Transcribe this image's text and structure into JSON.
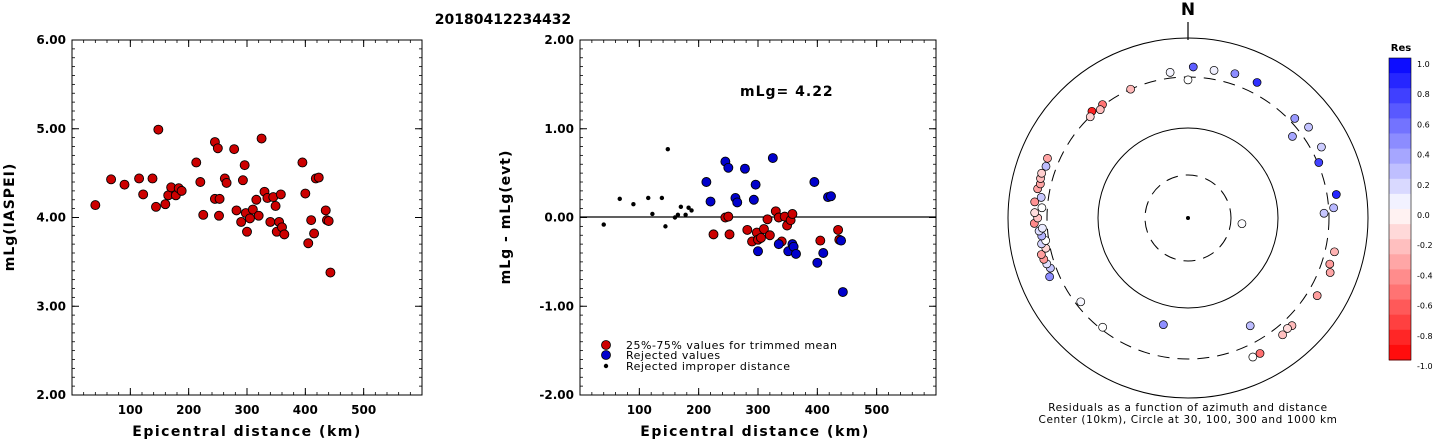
{
  "title": "20180412234432",
  "chart_data": [
    {
      "type": "scatter",
      "xlabel": "Epicentral distance (km)",
      "ylabel": "mLg(IASPEI)",
      "xlim": [
        0,
        600
      ],
      "ylim": [
        2.0,
        6.0
      ],
      "xticks": [
        "100",
        "200",
        "300",
        "400",
        "500"
      ],
      "yticks": [
        "2.00",
        "3.00",
        "4.00",
        "5.00",
        "6.00"
      ],
      "point_color": "#cc0000",
      "points": [
        [
          40,
          4.14
        ],
        [
          67,
          4.43
        ],
        [
          90,
          4.37
        ],
        [
          115,
          4.44
        ],
        [
          122,
          4.26
        ],
        [
          138,
          4.44
        ],
        [
          144,
          4.12
        ],
        [
          148,
          4.99
        ],
        [
          160,
          4.15
        ],
        [
          165,
          4.25
        ],
        [
          170,
          4.34
        ],
        [
          178,
          4.25
        ],
        [
          183,
          4.33
        ],
        [
          188,
          4.3
        ],
        [
          213,
          4.62
        ],
        [
          220,
          4.4
        ],
        [
          225,
          4.03
        ],
        [
          245,
          4.21
        ],
        [
          245,
          4.85
        ],
        [
          250,
          4.78
        ],
        [
          252,
          4.02
        ],
        [
          253,
          4.21
        ],
        [
          262,
          4.44
        ],
        [
          265,
          4.39
        ],
        [
          278,
          4.77
        ],
        [
          282,
          4.08
        ],
        [
          290,
          3.95
        ],
        [
          293,
          4.42
        ],
        [
          296,
          4.59
        ],
        [
          298,
          4.05
        ],
        [
          300,
          3.84
        ],
        [
          305,
          3.99
        ],
        [
          310,
          4.09
        ],
        [
          316,
          4.2
        ],
        [
          320,
          4.02
        ],
        [
          325,
          4.89
        ],
        [
          330,
          4.29
        ],
        [
          335,
          4.22
        ],
        [
          340,
          3.95
        ],
        [
          345,
          4.23
        ],
        [
          349,
          4.13
        ],
        [
          351,
          3.84
        ],
        [
          355,
          3.95
        ],
        [
          358,
          4.26
        ],
        [
          360,
          3.89
        ],
        [
          364,
          3.81
        ],
        [
          395,
          4.62
        ],
        [
          400,
          4.27
        ],
        [
          405,
          3.71
        ],
        [
          410,
          3.97
        ],
        [
          415,
          3.82
        ],
        [
          418,
          4.44
        ],
        [
          423,
          4.45
        ],
        [
          435,
          4.08
        ],
        [
          437,
          3.97
        ],
        [
          440,
          3.96
        ],
        [
          443,
          3.38
        ]
      ]
    },
    {
      "type": "scatter",
      "xlabel": "Epicentral distance (km)",
      "ylabel": "mLg - mLg(evt)",
      "xlim": [
        0,
        600
      ],
      "ylim": [
        -2.0,
        2.0
      ],
      "xticks": [
        "100",
        "200",
        "300",
        "400",
        "500"
      ],
      "yticks": [
        "-2.00",
        "-1.00",
        "0.00",
        "1.00",
        "2.00"
      ],
      "annotation": "mLg= 4.22",
      "zero_line": 0.0,
      "legend": {
        "position": "bottom-left",
        "entries": [
          {
            "label": "25%-75% values for trimmed mean",
            "color": "#cc0000"
          },
          {
            "label": "Rejected values",
            "color": "#0000cc"
          },
          {
            "label": "Rejected improper distance",
            "color": "#000000"
          }
        ]
      },
      "series": [
        {
          "color": "#cc0000",
          "marker": "large",
          "points": [
            [
              225,
              -0.19
            ],
            [
              245,
              0.0
            ],
            [
              250,
              0.01
            ],
            [
              252,
              -0.19
            ],
            [
              282,
              -0.14
            ],
            [
              290,
              -0.27
            ],
            [
              298,
              -0.17
            ],
            [
              300,
              -0.25
            ],
            [
              305,
              -0.23
            ],
            [
              310,
              -0.13
            ],
            [
              316,
              -0.02
            ],
            [
              320,
              -0.2
            ],
            [
              330,
              0.07
            ],
            [
              335,
              0.0
            ],
            [
              340,
              -0.27
            ],
            [
              345,
              0.01
            ],
            [
              349,
              -0.09
            ],
            [
              355,
              -0.03
            ],
            [
              358,
              0.04
            ],
            [
              405,
              -0.26
            ],
            [
              435,
              -0.14
            ],
            [
              437,
              -0.25
            ]
          ]
        },
        {
          "color": "#0000cc",
          "marker": "large",
          "points": [
            [
              213,
              0.4
            ],
            [
              220,
              0.18
            ],
            [
              245,
              0.63
            ],
            [
              250,
              0.56
            ],
            [
              262,
              0.22
            ],
            [
              265,
              0.17
            ],
            [
              278,
              0.55
            ],
            [
              293,
              0.2
            ],
            [
              296,
              0.37
            ],
            [
              300,
              -0.38
            ],
            [
              325,
              0.67
            ],
            [
              335,
              -0.3
            ],
            [
              351,
              -0.38
            ],
            [
              358,
              -0.3
            ],
            [
              360,
              -0.33
            ],
            [
              364,
              -0.41
            ],
            [
              395,
              0.4
            ],
            [
              400,
              -0.51
            ],
            [
              410,
              -0.4
            ],
            [
              418,
              0.23
            ],
            [
              423,
              0.24
            ],
            [
              440,
              -0.26
            ],
            [
              443,
              -0.84
            ]
          ]
        },
        {
          "color": "#000000",
          "marker": "small",
          "points": [
            [
              40,
              -0.08
            ],
            [
              67,
              0.21
            ],
            [
              90,
              0.15
            ],
            [
              115,
              0.22
            ],
            [
              122,
              0.04
            ],
            [
              138,
              0.22
            ],
            [
              144,
              -0.1
            ],
            [
              148,
              0.77
            ],
            [
              160,
              0.0
            ],
            [
              165,
              0.03
            ],
            [
              170,
              0.12
            ],
            [
              178,
              0.03
            ],
            [
              183,
              0.11
            ],
            [
              188,
              0.08
            ]
          ]
        }
      ]
    },
    {
      "type": "polar-scatter",
      "north_label": "N",
      "caption_line1": "Residuals as a function of azimuth and distance",
      "caption_line2": "Center (10km), Circle at 30, 100, 300 and 1000 km",
      "rings_km": [
        30,
        100,
        300,
        1000
      ],
      "colorbar": {
        "title": "Res",
        "range": [
          -1.0,
          1.0
        ],
        "labels": [
          "1.0",
          "0.8",
          "0.6",
          "0.4",
          "0.2",
          "0.0",
          "-0.2",
          "-0.4",
          "-0.6",
          "-0.8",
          "-1.0"
        ],
        "positive_color": "#0000ff",
        "negative_color": "#ff0000"
      },
      "points": [
        {
          "az": 353,
          "dist_km": 358,
          "res": 0.04
        },
        {
          "az": 2,
          "dist_km": 410,
          "res": 0.63
        },
        {
          "az": 10,
          "dist_km": 395,
          "res": 0.06
        },
        {
          "az": 18,
          "dist_km": 418,
          "res": 0.45
        },
        {
          "az": 27,
          "dist_km": 423,
          "res": 0.81
        },
        {
          "az": 0,
          "dist_km": 282,
          "res": 0.0
        },
        {
          "az": 336,
          "dist_km": 300,
          "res": -0.28
        },
        {
          "az": 323,
          "dist_km": 310,
          "res": -0.55
        },
        {
          "az": 318,
          "dist_km": 325,
          "res": -0.88
        },
        {
          "az": 316,
          "dist_km": 298,
          "res": -0.18
        },
        {
          "az": 321,
          "dist_km": 290,
          "res": -0.26
        },
        {
          "az": 53,
          "dist_km": 408,
          "res": 0.24
        },
        {
          "az": 47,
          "dist_km": 350,
          "res": 0.4
        },
        {
          "az": 62,
          "dist_km": 410,
          "res": 0.2
        },
        {
          "az": 52,
          "dist_km": 250,
          "res": 0.35
        },
        {
          "az": 67,
          "dist_km": 310,
          "res": 0.74
        },
        {
          "az": 81,
          "dist_km": 398,
          "res": 0.86
        },
        {
          "az": 86,
          "dist_km": 350,
          "res": 0.28
        },
        {
          "az": 88,
          "dist_km": 270,
          "res": 0.22
        },
        {
          "az": 96,
          "dist_km": 40,
          "res": 0.01
        },
        {
          "az": 103,
          "dist_km": 400,
          "res": -0.3
        },
        {
          "az": 108,
          "dist_km": 385,
          "res": -0.39
        },
        {
          "az": 111,
          "dist_km": 425,
          "res": -0.35
        },
        {
          "az": 121,
          "dist_km": 405,
          "res": -0.38
        },
        {
          "az": 136,
          "dist_km": 392,
          "res": -0.27
        },
        {
          "az": 141,
          "dist_km": 400,
          "res": -0.25
        },
        {
          "az": 138,
          "dist_km": 380,
          "res": -0.14
        },
        {
          "az": 152,
          "dist_km": 440,
          "res": -0.56
        },
        {
          "az": 155,
          "dist_km": 440,
          "res": 0.0
        },
        {
          "az": 150,
          "dist_km": 210,
          "res": 0.26
        },
        {
          "az": 193,
          "dist_km": 152,
          "res": 0.44
        },
        {
          "az": 218,
          "dist_km": 285,
          "res": 0.0
        },
        {
          "az": 232,
          "dist_km": 270,
          "res": 0.03
        },
        {
          "az": 247,
          "dist_km": 400,
          "res": 0.45
        },
        {
          "az": 250,
          "dist_km": 355,
          "res": 0.23
        },
        {
          "az": 252,
          "dist_km": 378,
          "res": 0.12
        },
        {
          "az": 254,
          "dist_km": 396,
          "res": -0.4
        },
        {
          "az": 256,
          "dist_km": 410,
          "res": -0.38
        },
        {
          "az": 258,
          "dist_km": 343,
          "res": -0.16
        },
        {
          "az": 260,
          "dist_km": 380,
          "res": 0.17
        },
        {
          "az": 261,
          "dist_km": 330,
          "res": 0.0
        },
        {
          "az": 263,
          "dist_km": 365,
          "res": 0.3
        },
        {
          "az": 265,
          "dist_km": 390,
          "res": 0.13
        },
        {
          "az": 266,
          "dist_km": 350,
          "res": 0.08
        },
        {
          "az": 268,
          "dist_km": 445,
          "res": -0.46
        },
        {
          "az": 270,
          "dist_km": 400,
          "res": -0.23
        },
        {
          "az": 272,
          "dist_km": 440,
          "res": -0.13
        },
        {
          "az": 274,
          "dist_km": 355,
          "res": 0.0
        },
        {
          "az": 276,
          "dist_km": 450,
          "res": -0.42
        },
        {
          "az": 278,
          "dist_km": 375,
          "res": 0.22
        },
        {
          "az": 281,
          "dist_km": 437,
          "res": -0.37
        },
        {
          "az": 283,
          "dist_km": 415,
          "res": -0.36
        },
        {
          "az": 285,
          "dist_km": 430,
          "res": -0.27
        },
        {
          "az": 287,
          "dist_km": 435,
          "res": -0.19
        },
        {
          "az": 290,
          "dist_km": 410,
          "res": 0.26
        },
        {
          "az": 293,
          "dist_km": 430,
          "res": -0.36
        }
      ]
    }
  ]
}
